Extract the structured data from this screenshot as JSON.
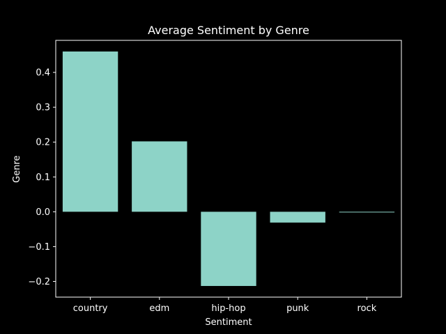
{
  "chart_data": {
    "type": "bar",
    "title": "Average Sentiment by Genre",
    "xlabel": "Sentiment",
    "ylabel": "Genre",
    "categories": [
      "country",
      "edm",
      "hip-hop",
      "punk",
      "rock"
    ],
    "values": [
      0.46,
      0.202,
      -0.213,
      -0.031,
      -0.002
    ],
    "ylim": [
      -0.245,
      0.492
    ],
    "yticks": [
      -0.2,
      -0.1,
      0.0,
      0.1,
      0.2,
      0.3,
      0.4
    ],
    "ytick_labels": [
      "−0.2",
      "−0.1",
      "0.0",
      "0.1",
      "0.2",
      "0.3",
      "0.4"
    ],
    "grid": false,
    "legend": "none"
  },
  "colors": {
    "background": "#000000",
    "bar": "#8dd3c7",
    "axis": "#ffffff",
    "text": "#ffffff"
  }
}
